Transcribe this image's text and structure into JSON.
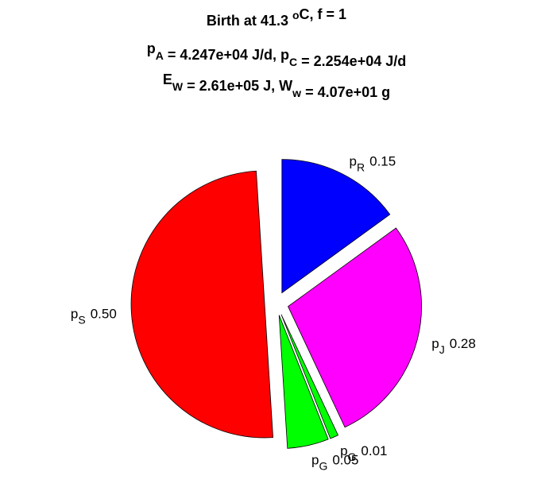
{
  "chart_data": {
    "type": "pie",
    "title_lines": [
      [
        {
          "text": "Birth at 41.3 "
        },
        {
          "sup": "o"
        },
        {
          "text": "C, f = 1"
        }
      ],
      [
        {
          "text": "p"
        },
        {
          "sub": "A"
        },
        {
          "text": " = 4.247e+04 J/d, p"
        },
        {
          "sub": "C"
        },
        {
          "text": " = 2.254e+04 J/d"
        }
      ],
      [
        {
          "text": "E"
        },
        {
          "sub": "W"
        },
        {
          "text": " = 2.61e+05 J, W"
        },
        {
          "sub": "w"
        },
        {
          "text": " = 4.07e+01 g"
        }
      ]
    ],
    "slices": [
      {
        "name": "p",
        "sub": "R",
        "color": "#0000ff"
      },
      {
        "name": "p",
        "sub": "J",
        "color": "#ff00ff"
      },
      {
        "name": "p",
        "sub": "G",
        "color": "#00ff00"
      },
      {
        "name": "p",
        "sub": "G",
        "color": "#00ff00"
      },
      {
        "name": "p",
        "sub": "S",
        "color": "#ff0000"
      }
    ],
    "values": [
      0.15,
      0.28,
      0.01,
      0.05,
      0.5
    ],
    "value_labels": [
      "0.15",
      "0.28",
      "0.01",
      "0.05",
      "0.50"
    ],
    "explode": true
  }
}
